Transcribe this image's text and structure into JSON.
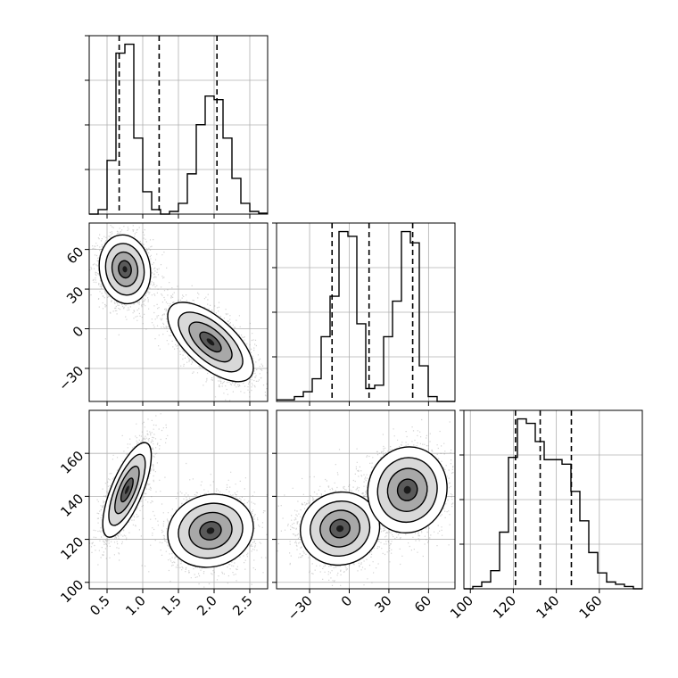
{
  "chart_data": {
    "type": "corner",
    "parameters": 3,
    "quantile_markers_shown": true,
    "grid": true,
    "colors": {
      "line": "#000000",
      "grid": "#b0b0b0",
      "scatter": "#808080"
    },
    "histograms": [
      {
        "param_index": 0,
        "xlim": [
          0.25,
          2.75
        ],
        "xticks": [
          0.5,
          1.0,
          1.5,
          2.0,
          2.5
        ],
        "xtick_labels": [
          "0.5",
          "1.0",
          "1.5",
          "2.0",
          "2.5"
        ],
        "quantiles": [
          0.67,
          1.23,
          2.04
        ],
        "bin_edges": [
          0.25,
          0.375,
          0.5,
          0.625,
          0.75,
          0.875,
          1.0,
          1.125,
          1.25,
          1.375,
          1.5,
          1.625,
          1.75,
          1.875,
          2.0,
          2.125,
          2.25,
          2.375,
          2.5,
          2.625,
          2.75
        ],
        "counts": [
          0,
          5,
          60,
          180,
          190,
          85,
          25,
          5,
          0,
          3,
          12,
          45,
          100,
          132,
          128,
          85,
          40,
          12,
          3,
          1
        ]
      },
      {
        "param_index": 1,
        "xlim": [
          -55,
          80
        ],
        "xticks": [
          -30,
          0,
          30,
          60
        ],
        "xtick_labels": [
          "-30",
          "0",
          "30",
          "60"
        ],
        "quantiles": [
          -13,
          15,
          48
        ],
        "bin_edges": [
          -55,
          -48.25,
          -41.5,
          -34.75,
          -28,
          -21.25,
          -14.5,
          -7.75,
          -1,
          5.75,
          12.5,
          19.25,
          26,
          32.75,
          39.5,
          46.25,
          53,
          59.75,
          66.5,
          73.25,
          80
        ],
        "counts": [
          1,
          1,
          3,
          6,
          14,
          40,
          65,
          105,
          102,
          48,
          8,
          10,
          40,
          62,
          105,
          98,
          22,
          3,
          0,
          0
        ]
      },
      {
        "param_index": 2,
        "xlim": [
          97,
          180
        ],
        "xticks": [
          100,
          120,
          140,
          160
        ],
        "xtick_labels": [
          "100",
          "120",
          "140",
          "160"
        ],
        "quantiles": [
          121,
          132.5,
          147
        ],
        "bin_edges": [
          97,
          101.15,
          105.3,
          109.45,
          113.6,
          117.75,
          121.9,
          126.05,
          130.2,
          134.35,
          138.5,
          142.65,
          146.8,
          150.95,
          155.1,
          159.25,
          163.4,
          167.55,
          171.7,
          175.85,
          180
        ],
        "counts": [
          0,
          1,
          3,
          8,
          25,
          58,
          75,
          73,
          65,
          57,
          57,
          55,
          43,
          30,
          16,
          7,
          3,
          2,
          1,
          0
        ]
      }
    ],
    "scatter_panels": [
      {
        "x_param": 0,
        "y_param": 1,
        "xlim": [
          0.25,
          2.75
        ],
        "ylim": [
          -55,
          80
        ],
        "yticks": [
          -30,
          0,
          30,
          60
        ],
        "ytick_labels": [
          "-30",
          "0",
          "30",
          "60"
        ],
        "clusters": [
          {
            "cx": 0.75,
            "cy": 45,
            "sx": 0.18,
            "sy": 13,
            "rho": -0.1,
            "n": 2200
          },
          {
            "cx": 1.95,
            "cy": -10,
            "sx": 0.3,
            "sy": 15,
            "rho": -0.65,
            "n": 2200
          }
        ]
      },
      {
        "x_param": 0,
        "y_param": 2,
        "xlim": [
          0.25,
          2.75
        ],
        "ylim": [
          97,
          180
        ],
        "yticks": [
          100,
          120,
          140,
          160
        ],
        "ytick_labels": [
          "100",
          "120",
          "140",
          "160"
        ],
        "clusters": [
          {
            "cx": 0.78,
            "cy": 143,
            "sx": 0.17,
            "sy": 11,
            "rho": 0.72,
            "n": 2200
          },
          {
            "cx": 1.95,
            "cy": 124,
            "sx": 0.3,
            "sy": 8.5,
            "rho": 0.1,
            "n": 2200
          }
        ]
      },
      {
        "x_param": 1,
        "y_param": 2,
        "xlim": [
          -55,
          80
        ],
        "ylim": [
          97,
          180
        ],
        "clusters": [
          {
            "cx": -7,
            "cy": 125,
            "sx": 15,
            "sy": 8.5,
            "rho": 0.05,
            "n": 2200
          },
          {
            "cx": 44,
            "cy": 143,
            "sx": 15,
            "sy": 10,
            "rho": 0.05,
            "n": 2200
          }
        ]
      }
    ]
  }
}
